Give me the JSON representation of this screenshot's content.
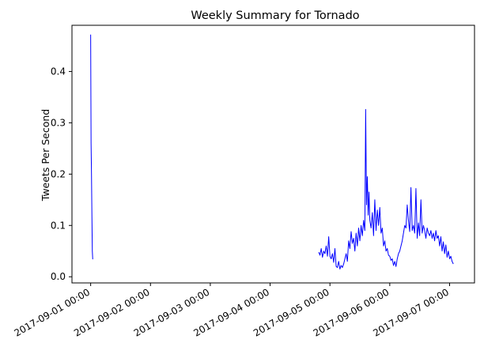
{
  "chart_data": {
    "type": "line",
    "title": "Weekly Summary for Tornado",
    "xlabel": "",
    "ylabel": "Tweets Per Second",
    "x_ticks": [
      "2017-09-01 00:00",
      "2017-09-02 00:00",
      "2017-09-03 00:00",
      "2017-09-04 00:00",
      "2017-09-05 00:00",
      "2017-09-06 00:00",
      "2017-09-07 00:00"
    ],
    "y_ticks": [
      "0.0",
      "0.1",
      "0.2",
      "0.3",
      "0.4"
    ],
    "xlim": [
      "2017-08-31 16:30",
      "2017-09-07 10:00"
    ],
    "ylim": [
      -0.012,
      0.49
    ],
    "grid": false,
    "legend": "none",
    "color": "#0000ff",
    "series": [
      {
        "segments": [
          {
            "x": [
              "2017-09-01 00:00",
              "2017-09-01 00:10",
              "2017-09-01 00:20",
              "2017-09-01 00:30",
              "2017-09-01 00:40",
              "2017-09-01 00:50"
            ],
            "y": [
              0.472,
              0.26,
              0.2,
              0.12,
              0.05,
              0.034
            ]
          },
          {
            "x": [
              "2017-09-04 19:30",
              "2017-09-04 20:00",
              "2017-09-04 20:30",
              "2017-09-04 21:00",
              "2017-09-04 21:30",
              "2017-09-04 22:00",
              "2017-09-04 22:30",
              "2017-09-04 23:00",
              "2017-09-04 23:30",
              "2017-09-05 00:00",
              "2017-09-05 00:30",
              "2017-09-05 01:00",
              "2017-09-05 01:30",
              "2017-09-05 02:00",
              "2017-09-05 02:30",
              "2017-09-05 03:00",
              "2017-09-05 03:30",
              "2017-09-05 04:00",
              "2017-09-05 04:30",
              "2017-09-05 05:00",
              "2017-09-05 05:30",
              "2017-09-05 06:00",
              "2017-09-05 06:30",
              "2017-09-05 07:00",
              "2017-09-05 07:30",
              "2017-09-05 08:00",
              "2017-09-05 08:30",
              "2017-09-05 09:00",
              "2017-09-05 09:30",
              "2017-09-05 10:00",
              "2017-09-05 10:30",
              "2017-09-05 11:00",
              "2017-09-05 11:30",
              "2017-09-05 12:00",
              "2017-09-05 12:30",
              "2017-09-05 13:00",
              "2017-09-05 13:30",
              "2017-09-05 14:00",
              "2017-09-05 14:20",
              "2017-09-05 14:40",
              "2017-09-05 15:00",
              "2017-09-05 15:20",
              "2017-09-05 15:40",
              "2017-09-05 16:00",
              "2017-09-05 16:30",
              "2017-09-05 17:00",
              "2017-09-05 17:30",
              "2017-09-05 18:00",
              "2017-09-05 18:30",
              "2017-09-05 19:00",
              "2017-09-05 19:30",
              "2017-09-05 20:00",
              "2017-09-05 20:30",
              "2017-09-05 21:00",
              "2017-09-05 21:30",
              "2017-09-05 22:00",
              "2017-09-05 22:30",
              "2017-09-05 23:00",
              "2017-09-05 23:30",
              "2017-09-06 00:00",
              "2017-09-06 00:30",
              "2017-09-06 01:00",
              "2017-09-06 01:30",
              "2017-09-06 02:00",
              "2017-09-06 02:30",
              "2017-09-06 03:00",
              "2017-09-06 03:30",
              "2017-09-06 04:00",
              "2017-09-06 04:30",
              "2017-09-06 05:00",
              "2017-09-06 05:30",
              "2017-09-06 06:00",
              "2017-09-06 06:30",
              "2017-09-06 07:00",
              "2017-09-06 07:30",
              "2017-09-06 08:00",
              "2017-09-06 08:30",
              "2017-09-06 09:00",
              "2017-09-06 09:30",
              "2017-09-06 10:00",
              "2017-09-06 10:30",
              "2017-09-06 11:00",
              "2017-09-06 11:30",
              "2017-09-06 12:00",
              "2017-09-06 12:30",
              "2017-09-06 13:00",
              "2017-09-06 13:30",
              "2017-09-06 14:00",
              "2017-09-06 14:30",
              "2017-09-06 15:00",
              "2017-09-06 15:30",
              "2017-09-06 16:00",
              "2017-09-06 16:30",
              "2017-09-06 17:00",
              "2017-09-06 17:30",
              "2017-09-06 18:00",
              "2017-09-06 18:30",
              "2017-09-06 19:00",
              "2017-09-06 19:30",
              "2017-09-06 20:00",
              "2017-09-06 20:30",
              "2017-09-06 21:00",
              "2017-09-06 21:30",
              "2017-09-06 22:00",
              "2017-09-06 22:30",
              "2017-09-06 23:00",
              "2017-09-06 23:30",
              "2017-09-07 00:00",
              "2017-09-07 00:30",
              "2017-09-07 01:00",
              "2017-09-07 01:30"
            ],
            "y": [
              0.048,
              0.042,
              0.055,
              0.038,
              0.05,
              0.045,
              0.06,
              0.04,
              0.078,
              0.04,
              0.035,
              0.045,
              0.028,
              0.055,
              0.02,
              0.018,
              0.03,
              0.015,
              0.022,
              0.018,
              0.025,
              0.035,
              0.045,
              0.03,
              0.07,
              0.055,
              0.088,
              0.065,
              0.075,
              0.05,
              0.085,
              0.06,
              0.095,
              0.07,
              0.1,
              0.08,
              0.11,
              0.09,
              0.326,
              0.14,
              0.195,
              0.12,
              0.165,
              0.11,
              0.095,
              0.125,
              0.08,
              0.15,
              0.09,
              0.13,
              0.1,
              0.135,
              0.085,
              0.095,
              0.06,
              0.07,
              0.05,
              0.055,
              0.042,
              0.04,
              0.032,
              0.035,
              0.022,
              0.03,
              0.02,
              0.035,
              0.045,
              0.05,
              0.06,
              0.07,
              0.085,
              0.1,
              0.095,
              0.14,
              0.11,
              0.088,
              0.174,
              0.09,
              0.1,
              0.085,
              0.172,
              0.075,
              0.105,
              0.08,
              0.15,
              0.085,
              0.1,
              0.09,
              0.075,
              0.095,
              0.085,
              0.08,
              0.09,
              0.075,
              0.085,
              0.07,
              0.09,
              0.075,
              0.08,
              0.06,
              0.078,
              0.05,
              0.068,
              0.045,
              0.062,
              0.038,
              0.05,
              0.035,
              0.04,
              0.03,
              0.025
            ]
          }
        ]
      }
    ]
  }
}
